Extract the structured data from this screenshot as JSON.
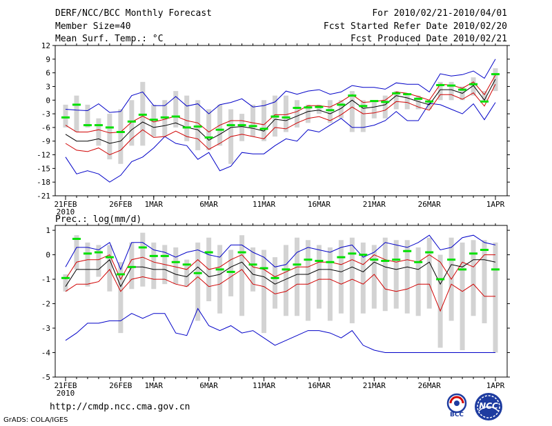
{
  "header": {
    "title": "DERF/NCC/BCC Monthly Forecast",
    "member_size": "Member Size=40",
    "variable": "Mean Surf. Temp.: °C",
    "period": "For 2010/02/21-2010/04/01",
    "fcst_started": "Fcst Started Refer Date 2010/02/20",
    "fcst_produced": "Fcst Produced Date 2010/02/21"
  },
  "footer": {
    "url": "http://cmdp.ncc.cma.gov.cn",
    "grads_credit": "GrADS: COLA/IGES",
    "logo_bcc": "BCC",
    "logo_ncc": "NCC"
  },
  "colors": {
    "spread": "#d3d3d3",
    "median": "#00e000",
    "mean": "#000000",
    "std_band": "#d00000",
    "envelope": "#0000c8"
  },
  "chart_data": [
    {
      "type": "line",
      "title": "Mean Surf. Temp.: °C",
      "x": [
        1,
        2,
        3,
        4,
        5,
        6,
        7,
        8,
        9,
        10,
        11,
        12,
        13,
        14,
        15,
        16,
        17,
        18,
        19,
        20,
        21,
        22,
        23,
        24,
        25,
        26,
        27,
        28,
        29,
        30,
        31,
        32,
        33,
        34,
        35,
        36,
        37,
        38,
        39,
        40
      ],
      "x_tick_labels": [
        {
          "x": 1,
          "label": "21FEB",
          "sub": "2010"
        },
        {
          "x": 6,
          "label": "26FEB"
        },
        {
          "x": 9,
          "label": "1MAR"
        },
        {
          "x": 14,
          "label": "6MAR"
        },
        {
          "x": 19,
          "label": "11MAR"
        },
        {
          "x": 24,
          "label": "16MAR"
        },
        {
          "x": 29,
          "label": "21MAR"
        },
        {
          "x": 34,
          "label": "26MAR"
        },
        {
          "x": 40,
          "label": "1APR"
        }
      ],
      "ylim": [
        -21,
        12
      ],
      "yticks": [
        -21,
        -18,
        -15,
        -12,
        -9,
        -6,
        -3,
        0,
        3,
        6,
        9,
        12
      ],
      "series": [
        {
          "name": "max",
          "values": [
            -2,
            -2.2,
            -2.3,
            -0.8,
            -2.7,
            -2.5,
            1,
            1.8,
            -1.2,
            -1.2,
            0.8,
            -1.3,
            -0.8,
            -3,
            -1,
            -0.5,
            0.3,
            -1.5,
            -1.2,
            -0.4,
            2,
            1.3,
            2,
            2.3,
            1.3,
            1.8,
            3.2,
            2.8,
            2.8,
            2.4,
            3.8,
            3.5,
            3.5,
            1.8,
            5.8,
            5.3,
            5.6,
            6.4,
            4.8,
            9
          ]
        },
        {
          "name": "mean_plus_sd",
          "values": [
            -5.5,
            -7,
            -7,
            -6.5,
            -7.2,
            -7,
            -4.8,
            -3.5,
            -4.8,
            -4.2,
            -3.5,
            -4.5,
            -5,
            -7,
            -5.5,
            -4.5,
            -4.5,
            -5,
            -5.4,
            -3.2,
            -3.2,
            -2.5,
            -1.2,
            -1.2,
            -1.5,
            -0.3,
            1.2,
            -0.5,
            -0.3,
            0,
            1.8,
            1.5,
            0.8,
            0,
            3.5,
            3.3,
            2.6,
            4,
            1.2,
            5.5
          ]
        },
        {
          "name": "mean",
          "values": [
            -7.5,
            -9,
            -9,
            -8.5,
            -9.5,
            -9,
            -6.5,
            -4.8,
            -6,
            -5.6,
            -5,
            -6,
            -6.5,
            -8.8,
            -7.5,
            -6,
            -5.8,
            -6.2,
            -6.8,
            -4.2,
            -4.5,
            -3.5,
            -2.5,
            -2.2,
            -3,
            -1.8,
            0,
            -1.8,
            -1.5,
            -1,
            1,
            0.5,
            -0.3,
            -1,
            2.3,
            2.3,
            1.5,
            3.2,
            0,
            4.6
          ]
        },
        {
          "name": "mean_minus_sd",
          "values": [
            -9.5,
            -11,
            -11.3,
            -10.5,
            -12,
            -11,
            -8.5,
            -6.5,
            -8.2,
            -8,
            -6.8,
            -8,
            -8.5,
            -10.8,
            -9.5,
            -8,
            -7.5,
            -8,
            -8.5,
            -6,
            -6.3,
            -5,
            -4,
            -3.6,
            -4.5,
            -3.2,
            -1.5,
            -3,
            -2.8,
            -2.2,
            -0.3,
            -0.5,
            -1.5,
            -2.2,
            1.2,
            1.2,
            0.2,
            1.6,
            -1.3,
            3.5
          ]
        },
        {
          "name": "min",
          "values": [
            -12.5,
            -16.2,
            -15.5,
            -16.2,
            -18,
            -16.5,
            -13.5,
            -12.5,
            -10.5,
            -8,
            -9.5,
            -10,
            -13,
            -11.5,
            -15.5,
            -14.5,
            -11.5,
            -11.8,
            -11.8,
            -10,
            -8.5,
            -9,
            -6.5,
            -7,
            -5.5,
            -4,
            -6,
            -6,
            -5.5,
            -4.5,
            -2.5,
            -4.5,
            -4.5,
            -0.7,
            -1,
            -2,
            -3,
            -0.8,
            -4.3,
            -0.5
          ]
        },
        {
          "name": "median",
          "values": [
            -3.8,
            -1,
            -5.5,
            -5.5,
            -6,
            -7,
            -4.7,
            -3.2,
            -4.3,
            -3.8,
            -3.6,
            -6,
            -5.8,
            -8.2,
            -6.5,
            -5.5,
            -5.5,
            -5.7,
            -6.3,
            -3.6,
            -3.8,
            -1.7,
            -1.6,
            -1.5,
            -2.2,
            -1,
            1,
            -1.3,
            -0.2,
            -0.4,
            1.5,
            1.3,
            0.3,
            -0.3,
            3.3,
            3.2,
            2.3,
            3.5,
            -0.3,
            5.7
          ]
        },
        {
          "name": "spread_high",
          "values": [
            -1,
            1,
            -1,
            -4,
            -3,
            -2,
            0,
            4,
            -1,
            0,
            2,
            1,
            0,
            -2,
            -1,
            -2,
            -3,
            -1,
            0,
            1,
            1,
            0,
            -1,
            -1,
            0,
            0,
            2,
            0,
            0,
            1,
            2,
            1,
            1,
            0,
            4,
            4,
            3,
            5,
            2,
            7
          ]
        },
        {
          "name": "spread_low",
          "values": [
            -6,
            -7,
            -6,
            -10,
            -13,
            -14,
            -10,
            -10,
            -8,
            -8,
            -6,
            -9,
            -11,
            -11,
            -10,
            -14,
            -9,
            -8,
            -9,
            -8,
            -7,
            -6,
            -5,
            -3,
            -5,
            -4,
            -7,
            -7,
            -4,
            -4,
            -2,
            -2,
            -2,
            -2,
            0,
            0,
            0,
            1,
            0,
            2
          ]
        }
      ]
    },
    {
      "type": "line",
      "title": "Prec.: log(mm/d)",
      "x": [
        1,
        2,
        3,
        4,
        5,
        6,
        7,
        8,
        9,
        10,
        11,
        12,
        13,
        14,
        15,
        16,
        17,
        18,
        19,
        20,
        21,
        22,
        23,
        24,
        25,
        26,
        27,
        28,
        29,
        30,
        31,
        32,
        33,
        34,
        35,
        36,
        37,
        38,
        39,
        40
      ],
      "x_tick_labels": [
        {
          "x": 1,
          "label": "21FEB",
          "sub": "2010"
        },
        {
          "x": 6,
          "label": "26FEB"
        },
        {
          "x": 9,
          "label": "1MAR"
        },
        {
          "x": 14,
          "label": "6MAR"
        },
        {
          "x": 19,
          "label": "11MAR"
        },
        {
          "x": 24,
          "label": "16MAR"
        },
        {
          "x": 29,
          "label": "21MAR"
        },
        {
          "x": 34,
          "label": "26MAR"
        },
        {
          "x": 40,
          "label": "1APR"
        }
      ],
      "ylim": [
        -5,
        1.2
      ],
      "yticks": [
        -5,
        -4,
        -3,
        -2,
        -1,
        0,
        1
      ],
      "series": [
        {
          "name": "max",
          "values": [
            -0.5,
            0.3,
            0.3,
            0.2,
            0.5,
            -0.6,
            0.5,
            0.5,
            0.2,
            0.1,
            -0.1,
            0.1,
            0.2,
            0,
            -0.1,
            0.4,
            0.4,
            0.1,
            -0.1,
            -0.5,
            -0.4,
            0.1,
            0.3,
            0.2,
            0.1,
            0.3,
            0.4,
            -0.1,
            0.1,
            0.5,
            0.4,
            0.3,
            0.5,
            0.8,
            0.2,
            0.3,
            0.7,
            0.8,
            0.5,
            0.4
          ]
        },
        {
          "name": "mean_plus_sd",
          "values": [
            -1,
            -0.3,
            -0.2,
            -0.2,
            0,
            -1,
            -0.2,
            -0.1,
            -0.3,
            -0.4,
            -0.5,
            -0.6,
            -0.2,
            -0.6,
            -0.5,
            -0.2,
            0,
            -0.5,
            -0.6,
            -0.9,
            -0.7,
            -0.5,
            -0.5,
            -0.3,
            -0.3,
            -0.4,
            -0.2,
            -0.4,
            0,
            -0.2,
            -0.3,
            -0.2,
            -0.3,
            0,
            -0.3,
            -1,
            -0.3,
            -0.5,
            0,
            0
          ]
        },
        {
          "name": "mean",
          "values": [
            -1.3,
            -0.6,
            -0.6,
            -0.6,
            -0.2,
            -1.3,
            -0.5,
            -0.5,
            -0.6,
            -0.6,
            -0.8,
            -0.9,
            -0.5,
            -0.9,
            -0.8,
            -0.5,
            -0.3,
            -0.8,
            -0.9,
            -1.2,
            -1,
            -0.8,
            -0.8,
            -0.6,
            -0.6,
            -0.7,
            -0.5,
            -0.7,
            -0.3,
            -0.5,
            -0.6,
            -0.5,
            -0.6,
            -0.3,
            -1.2,
            -0.4,
            -0.5,
            -0.2,
            -0.2,
            -0.3
          ]
        },
        {
          "name": "mean_minus_sd",
          "values": [
            -1.5,
            -1.2,
            -1.2,
            -1.1,
            -0.6,
            -1.5,
            -1,
            -0.9,
            -1,
            -1,
            -1.2,
            -1.3,
            -0.9,
            -1.3,
            -1.2,
            -0.9,
            -0.6,
            -1.2,
            -1.3,
            -1.6,
            -1.5,
            -1.2,
            -1.2,
            -1,
            -1,
            -1.2,
            -1,
            -1.2,
            -0.8,
            -1.4,
            -1.5,
            -1.4,
            -1.2,
            -1.2,
            -2.3,
            -1.2,
            -1.5,
            -1.2,
            -1.7,
            -1.7
          ]
        },
        {
          "name": "min",
          "values": [
            -3.5,
            -3.2,
            -2.8,
            -2.8,
            -2.7,
            -2.7,
            -2.4,
            -2.6,
            -2.4,
            -2.4,
            -3.2,
            -3.3,
            -2.2,
            -2.9,
            -3.1,
            -2.9,
            -3.2,
            -3.1,
            -3.4,
            -3.7,
            -3.5,
            -3.3,
            -3.1,
            -3.1,
            -3.2,
            -3.4,
            -3.1,
            -3.7,
            -3.9,
            -4,
            -4,
            -4,
            -4,
            -4,
            -4,
            -4,
            -4,
            -4,
            -4,
            -4
          ]
        },
        {
          "name": "median",
          "values": [
            -0.95,
            0.65,
            0.05,
            0.1,
            -0.1,
            -0.8,
            -0.5,
            0.3,
            -0.05,
            -0.05,
            -0.3,
            -0.4,
            -0.75,
            0.1,
            -0.6,
            -0.7,
            0.1,
            -0.4,
            -0.55,
            -0.95,
            -0.6,
            -0.4,
            -0.2,
            -0.25,
            -0.3,
            -0.1,
            0.05,
            0,
            -0.2,
            -0.25,
            -0.2,
            0.15,
            -0.3,
            0.1,
            -1,
            -0.2,
            -0.6,
            0.05,
            0.2,
            -0.6
          ]
        },
        {
          "name": "spread_high",
          "values": [
            -0.8,
            0.8,
            0.5,
            0.4,
            0.4,
            -0.3,
            0.5,
            0.9,
            0.5,
            0.4,
            0.3,
            -0.2,
            0.5,
            0.7,
            0.4,
            0.2,
            0.8,
            0.3,
            0.2,
            -0.1,
            0.4,
            0.7,
            0.6,
            0.4,
            0.3,
            0.6,
            0.7,
            0.5,
            0.4,
            0.7,
            0.6,
            0.6,
            0.3,
            0.7,
            0,
            0.7,
            0.5,
            0.6,
            0.6,
            0.5
          ]
        },
        {
          "name": "spread_low",
          "values": [
            -1.5,
            -0.6,
            -1.3,
            -0.9,
            -1.5,
            -3.2,
            -1.4,
            -1.3,
            -1.4,
            -1.2,
            -1.2,
            -1.3,
            -2.7,
            -1.9,
            -2.4,
            -1.7,
            -2.5,
            -1.5,
            -3.2,
            -2.2,
            -2.5,
            -2.5,
            -2.7,
            -2.2,
            -2.7,
            -2.4,
            -2.8,
            -2.4,
            -2.2,
            -2.3,
            -2.2,
            -2.4,
            -2.5,
            -2.2,
            -3.8,
            -2.7,
            -3.9,
            -2.5,
            -2.8,
            -4
          ]
        }
      ]
    }
  ]
}
